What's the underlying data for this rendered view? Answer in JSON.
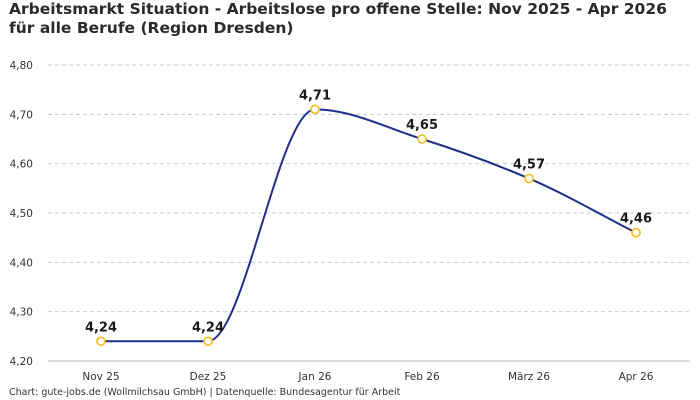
{
  "chart_data": {
    "type": "line",
    "title": "Arbeitsmarkt Situation - Arbeitslose pro offene Stelle: Nov 2025 - Apr 2026 für alle Berufe (Region Dresden)",
    "categories": [
      "Nov 25",
      "Dez 25",
      "Jan 26",
      "Feb 26",
      "März 26",
      "Apr 26"
    ],
    "series": [
      {
        "values": [
          4.24,
          4.24,
          4.71,
          4.65,
          4.57,
          4.46
        ]
      }
    ],
    "data_labels": [
      "4,24",
      "4,24",
      "4,71",
      "4,65",
      "4,57",
      "4,46"
    ],
    "yticks": [
      4.2,
      4.3,
      4.4,
      4.5,
      4.6,
      4.7,
      4.8
    ],
    "ytick_labels": [
      "4,20",
      "4,30",
      "4,40",
      "4,50",
      "4,60",
      "4,70",
      "4,80"
    ],
    "ylim": [
      4.2,
      4.8
    ],
    "grid": true,
    "line_color": "#1f2f8a",
    "marker_color": "#f2c232"
  },
  "source_text": "Chart: gute-jobs.de (Wollmilchsau GmbH) | Datenquelle: Bundesagentur für Arbeit"
}
